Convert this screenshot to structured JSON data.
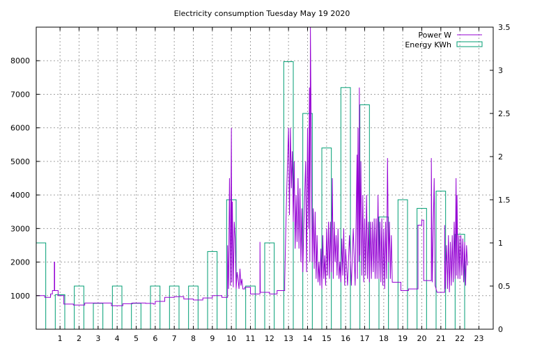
{
  "chart_data": {
    "type": "line",
    "title": "Electricity consumption Tuesday May 19 2020",
    "xlabel": "",
    "ylabel": "",
    "y2label": "",
    "grid": true,
    "legend_position": "top-right",
    "x_axis": {
      "range": [
        -0.25,
        23.75
      ],
      "ticks": [
        1,
        2,
        3,
        4,
        5,
        6,
        7,
        8,
        9,
        10,
        11,
        12,
        13,
        14,
        15,
        16,
        17,
        18,
        19,
        20,
        21,
        22,
        23
      ]
    },
    "y_axis_left": {
      "range": [
        0,
        9000
      ],
      "ticks": [
        1000,
        2000,
        3000,
        4000,
        5000,
        6000,
        7000,
        8000
      ]
    },
    "y_axis_right": {
      "range": [
        0,
        3.5
      ],
      "ticks": [
        "0",
        "0.5",
        "1",
        "1.5",
        "2",
        "2.5",
        "3",
        "3.5"
      ]
    },
    "series": [
      {
        "name": "Power W",
        "style": "line",
        "axis": "left",
        "color": "#9400d3",
        "points": [
          [
            -0.25,
            1000
          ],
          [
            0.2,
            1000
          ],
          [
            0.2,
            950
          ],
          [
            0.5,
            950
          ],
          [
            0.5,
            1050
          ],
          [
            0.6,
            1050
          ],
          [
            0.6,
            1150
          ],
          [
            0.7,
            1150
          ],
          [
            0.7,
            2000
          ],
          [
            0.72,
            2000
          ],
          [
            0.72,
            1150
          ],
          [
            0.9,
            1150
          ],
          [
            0.9,
            1000
          ],
          [
            1.2,
            1000
          ],
          [
            1.2,
            750
          ],
          [
            1.7,
            750
          ],
          [
            1.7,
            720
          ],
          [
            2.3,
            720
          ],
          [
            2.3,
            780
          ],
          [
            3.7,
            780
          ],
          [
            3.7,
            700
          ],
          [
            4.3,
            700
          ],
          [
            4.3,
            760
          ],
          [
            4.8,
            760
          ],
          [
            4.8,
            780
          ],
          [
            5.5,
            780
          ],
          [
            5.5,
            770
          ],
          [
            5.9,
            770
          ],
          [
            5.9,
            750
          ],
          [
            6.0,
            750
          ],
          [
            6.0,
            830
          ],
          [
            6.5,
            830
          ],
          [
            6.5,
            950
          ],
          [
            7.0,
            950
          ],
          [
            7.0,
            970
          ],
          [
            7.5,
            970
          ],
          [
            7.5,
            900
          ],
          [
            8.0,
            900
          ],
          [
            8.0,
            870
          ],
          [
            8.5,
            870
          ],
          [
            8.5,
            930
          ],
          [
            9.0,
            930
          ],
          [
            9.0,
            1000
          ],
          [
            9.5,
            1000
          ],
          [
            9.5,
            950
          ],
          [
            9.8,
            950
          ],
          [
            9.8,
            2500
          ],
          [
            9.85,
            1200
          ],
          [
            9.9,
            4500
          ],
          [
            9.95,
            1300
          ],
          [
            10.0,
            6000
          ],
          [
            10.02,
            1400
          ],
          [
            10.05,
            3800
          ],
          [
            10.1,
            1250
          ],
          [
            10.15,
            3200
          ],
          [
            10.2,
            2700
          ],
          [
            10.25,
            1200
          ],
          [
            10.3,
            1700
          ],
          [
            10.35,
            1500
          ],
          [
            10.4,
            1200
          ],
          [
            10.45,
            1800
          ],
          [
            10.5,
            1300
          ],
          [
            10.55,
            1500
          ],
          [
            10.6,
            1200
          ],
          [
            10.7,
            1200
          ],
          [
            10.7,
            1250
          ],
          [
            11.0,
            1250
          ],
          [
            11.0,
            1050
          ],
          [
            11.5,
            1050
          ],
          [
            11.5,
            2600
          ],
          [
            11.52,
            1100
          ],
          [
            12.0,
            1100
          ],
          [
            12.0,
            1050
          ],
          [
            12.4,
            1050
          ],
          [
            12.4,
            1150
          ],
          [
            12.8,
            1150
          ],
          [
            12.8,
            1400
          ],
          [
            12.85,
            2800
          ],
          [
            12.9,
            4000
          ],
          [
            12.95,
            5000
          ],
          [
            13.0,
            6000
          ],
          [
            13.05,
            3400
          ],
          [
            13.1,
            6000
          ],
          [
            13.15,
            4200
          ],
          [
            13.2,
            5300
          ],
          [
            13.25,
            3200
          ],
          [
            13.3,
            5000
          ],
          [
            13.35,
            2400
          ],
          [
            13.4,
            4000
          ],
          [
            13.45,
            2600
          ],
          [
            13.5,
            4500
          ],
          [
            13.55,
            2400
          ],
          [
            13.6,
            4200
          ],
          [
            13.65,
            2000
          ],
          [
            13.7,
            3600
          ],
          [
            13.75,
            1700
          ],
          [
            13.8,
            3000
          ],
          [
            13.85,
            4000
          ],
          [
            13.9,
            5000
          ],
          [
            13.95,
            1700
          ],
          [
            14.0,
            6000
          ],
          [
            14.05,
            3000
          ],
          [
            14.1,
            7200
          ],
          [
            14.12,
            2000
          ],
          [
            14.15,
            9000
          ],
          [
            14.2,
            5000
          ],
          [
            14.25,
            2000
          ],
          [
            14.3,
            3600
          ],
          [
            14.35,
            1800
          ],
          [
            14.4,
            3500
          ],
          [
            14.45,
            1500
          ],
          [
            14.5,
            2800
          ],
          [
            14.55,
            1400
          ],
          [
            14.6,
            2000
          ],
          [
            14.65,
            1300
          ],
          [
            14.7,
            2400
          ],
          [
            14.75,
            1200
          ],
          [
            14.8,
            2800
          ],
          [
            14.85,
            1500
          ],
          [
            14.9,
            2200
          ],
          [
            14.95,
            1300
          ],
          [
            15.0,
            3000
          ],
          [
            15.05,
            1600
          ],
          [
            15.1,
            3200
          ],
          [
            15.15,
            1500
          ],
          [
            15.2,
            3200
          ],
          [
            15.25,
            1700
          ],
          [
            15.3,
            4500
          ],
          [
            15.35,
            1500
          ],
          [
            15.4,
            3200
          ],
          [
            15.45,
            2000
          ],
          [
            15.5,
            2800
          ],
          [
            15.55,
            1600
          ],
          [
            15.6,
            3000
          ],
          [
            15.65,
            1500
          ],
          [
            15.7,
            2000
          ],
          [
            15.75,
            1400
          ],
          [
            15.8,
            2700
          ],
          [
            15.85,
            1600
          ],
          [
            15.9,
            3000
          ],
          [
            15.95,
            1300
          ],
          [
            16.0,
            2400
          ],
          [
            16.1,
            1300
          ],
          [
            16.2,
            2800
          ],
          [
            16.3,
            1300
          ],
          [
            16.4,
            3000
          ],
          [
            16.5,
            1300
          ],
          [
            16.6,
            5200
          ],
          [
            16.62,
            1500
          ],
          [
            16.65,
            6000
          ],
          [
            16.7,
            2000
          ],
          [
            16.72,
            7200
          ],
          [
            16.75,
            2200
          ],
          [
            16.8,
            5000
          ],
          [
            16.85,
            1600
          ],
          [
            16.9,
            4000
          ],
          [
            16.95,
            1400
          ],
          [
            17.0,
            3300
          ],
          [
            17.05,
            1600
          ],
          [
            17.1,
            4000
          ],
          [
            17.15,
            1500
          ],
          [
            17.2,
            3200
          ],
          [
            17.25,
            1400
          ],
          [
            17.3,
            3200
          ],
          [
            17.35,
            1500
          ],
          [
            17.4,
            3200
          ],
          [
            17.45,
            1700
          ],
          [
            17.5,
            3300
          ],
          [
            17.55,
            1500
          ],
          [
            17.6,
            3300
          ],
          [
            17.65,
            1500
          ],
          [
            17.7,
            4000
          ],
          [
            17.75,
            1500
          ],
          [
            17.8,
            3200
          ],
          [
            17.85,
            1400
          ],
          [
            17.9,
            3300
          ],
          [
            17.95,
            1300
          ],
          [
            18.0,
            3000
          ],
          [
            18.05,
            1200
          ],
          [
            18.1,
            3200
          ],
          [
            18.15,
            1500
          ],
          [
            18.2,
            5100
          ],
          [
            18.25,
            2000
          ],
          [
            18.3,
            3200
          ],
          [
            18.35,
            1500
          ],
          [
            18.4,
            2800
          ],
          [
            18.45,
            1400
          ],
          [
            18.5,
            1400
          ],
          [
            18.9,
            1400
          ],
          [
            18.9,
            1150
          ],
          [
            19.3,
            1150
          ],
          [
            19.3,
            1200
          ],
          [
            19.8,
            1200
          ],
          [
            19.8,
            3100
          ],
          [
            20.0,
            3100
          ],
          [
            20.0,
            3250
          ],
          [
            20.1,
            3250
          ],
          [
            20.1,
            1450
          ],
          [
            20.5,
            1450
          ],
          [
            20.5,
            5100
          ],
          [
            20.55,
            1400
          ],
          [
            20.65,
            4500
          ],
          [
            20.7,
            1300
          ],
          [
            20.8,
            1100
          ],
          [
            21.2,
            1100
          ],
          [
            21.2,
            3100
          ],
          [
            21.22,
            1200
          ],
          [
            21.3,
            2500
          ],
          [
            21.35,
            1200
          ],
          [
            21.4,
            2800
          ],
          [
            21.45,
            1100
          ],
          [
            21.5,
            2600
          ],
          [
            21.55,
            1300
          ],
          [
            21.6,
            2800
          ],
          [
            21.65,
            1400
          ],
          [
            21.7,
            3200
          ],
          [
            21.75,
            1500
          ],
          [
            21.8,
            4500
          ],
          [
            21.82,
            1600
          ],
          [
            21.85,
            4000
          ],
          [
            21.9,
            1500
          ],
          [
            21.95,
            2800
          ],
          [
            22.0,
            1500
          ],
          [
            22.05,
            2800
          ],
          [
            22.1,
            1600
          ],
          [
            22.15,
            2700
          ],
          [
            22.2,
            1400
          ],
          [
            22.25,
            2600
          ],
          [
            22.3,
            1300
          ],
          [
            22.35,
            2500
          ],
          [
            22.4,
            1900
          ]
        ]
      },
      {
        "name": "Energy KWh",
        "style": "boxes",
        "axis": "right",
        "color": "#009e73",
        "bars": [
          [
            0,
            1.0
          ],
          [
            1,
            0.4
          ],
          [
            2,
            0.5
          ],
          [
            3,
            0.3
          ],
          [
            4,
            0.5
          ],
          [
            5,
            0.3
          ],
          [
            6,
            0.5
          ],
          [
            7,
            0.5
          ],
          [
            8,
            0.5
          ],
          [
            9,
            0.9
          ],
          [
            10,
            1.5
          ],
          [
            11,
            0.5
          ],
          [
            12,
            1.0
          ],
          [
            13,
            3.1
          ],
          [
            14,
            2.5
          ],
          [
            15,
            2.1
          ],
          [
            16,
            2.8
          ],
          [
            17,
            2.6
          ],
          [
            18,
            1.3
          ],
          [
            19,
            1.5
          ],
          [
            20,
            1.4
          ],
          [
            21,
            1.6
          ],
          [
            22,
            1.1
          ]
        ]
      }
    ]
  }
}
